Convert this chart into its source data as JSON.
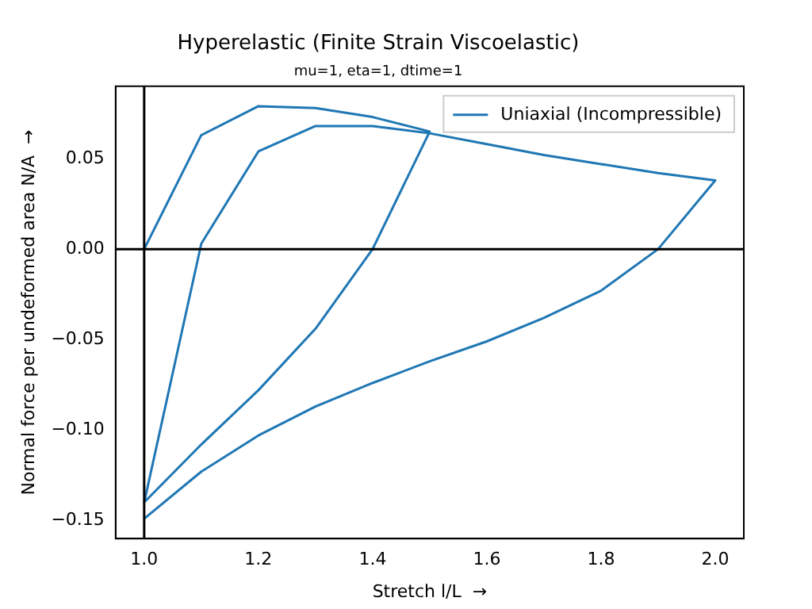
{
  "chart_data": {
    "type": "line",
    "title": "Hyperelastic (Finite Strain Viscoelastic)",
    "subtitle": "mu=1, eta=1, dtime=1",
    "xlabel": "Stretch l/L  →",
    "ylabel": "Normal force per undeformed area N/A  →",
    "series": [
      {
        "name": "Uniaxial (Incompressible)",
        "color": "#1f77b4",
        "x": [
          1.0,
          1.1,
          1.2,
          1.3,
          1.4,
          1.5,
          1.4,
          1.3,
          1.2,
          1.1,
          1.0,
          1.1,
          1.2,
          1.3,
          1.4,
          1.5,
          1.6,
          1.7,
          1.8,
          1.9,
          2.0,
          1.9,
          1.8,
          1.7,
          1.6,
          1.5,
          1.4,
          1.3,
          1.2,
          1.1,
          1.0
        ],
        "values": [
          0.0,
          0.063,
          0.079,
          0.078,
          0.073,
          0.065,
          0.0,
          -0.044,
          -0.078,
          -0.108,
          -0.14,
          0.003,
          0.054,
          0.068,
          0.068,
          0.064,
          0.058,
          0.052,
          0.047,
          0.042,
          0.038,
          0.0,
          -0.023,
          -0.038,
          -0.051,
          -0.062,
          -0.074,
          -0.087,
          -0.103,
          -0.123,
          -0.149
        ]
      }
    ],
    "xlim": [
      0.95,
      2.05
    ],
    "ylim": [
      -0.16,
      0.09
    ],
    "xticks": [
      {
        "value": 1.0,
        "label": "1.0"
      },
      {
        "value": 1.2,
        "label": "1.2"
      },
      {
        "value": 1.4,
        "label": "1.4"
      },
      {
        "value": 1.6,
        "label": "1.6"
      },
      {
        "value": 1.8,
        "label": "1.8"
      },
      {
        "value": 2.0,
        "label": "2.0"
      }
    ],
    "yticks": [
      {
        "value": -0.15,
        "label": "−0.15"
      },
      {
        "value": -0.1,
        "label": "−0.10"
      },
      {
        "value": -0.05,
        "label": "−0.05"
      },
      {
        "value": 0,
        "label": "0.00"
      },
      {
        "value": 0.05,
        "label": "0.05"
      }
    ],
    "ref_lines": [
      {
        "axis": "x",
        "value": 1.0,
        "color": "#000000"
      },
      {
        "axis": "y",
        "value": 0,
        "color": "#000000"
      }
    ],
    "grid": false,
    "legend": "top right",
    "line_style": "solid",
    "marker": "none"
  }
}
